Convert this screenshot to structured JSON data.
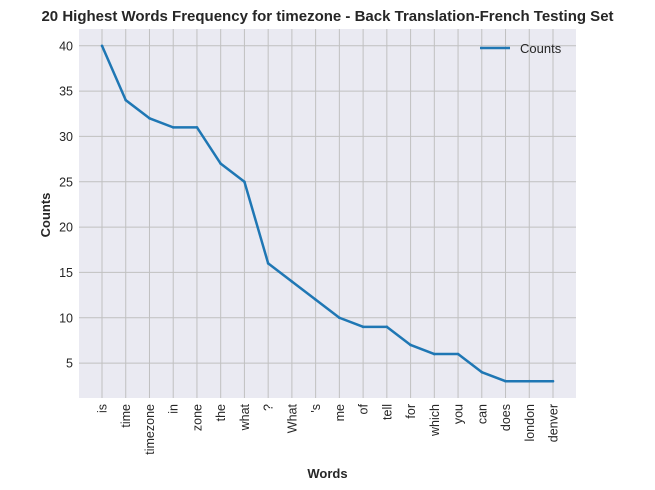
{
  "chart_data": {
    "type": "line",
    "title": "20 Highest Words Frequency for timezone - Back Translation-French Testing Set",
    "xlabel": "Words",
    "ylabel": "Counts",
    "categories": [
      "is",
      "time",
      "timezone",
      "in",
      "zone",
      "the",
      "what",
      "?",
      "What",
      "'s",
      "me",
      "of",
      "tell",
      "for",
      "which",
      "you",
      "can",
      "does",
      "london",
      "denver"
    ],
    "series": [
      {
        "name": "Counts",
        "values": [
          40,
          34,
          32,
          31,
          31,
          27,
          25,
          16,
          14,
          12,
          10,
          9,
          9,
          7,
          6,
          6,
          4,
          3,
          3,
          3
        ]
      }
    ],
    "yticks": [
      5,
      10,
      15,
      20,
      25,
      30,
      35,
      40
    ],
    "ylim": [
      1.15,
      41.85
    ],
    "grid": true,
    "legend_position": "upper-right",
    "colors": {
      "line": "#1f77b4",
      "plot_background": "#eaeaf2",
      "grid": "#c0c0c0"
    }
  }
}
